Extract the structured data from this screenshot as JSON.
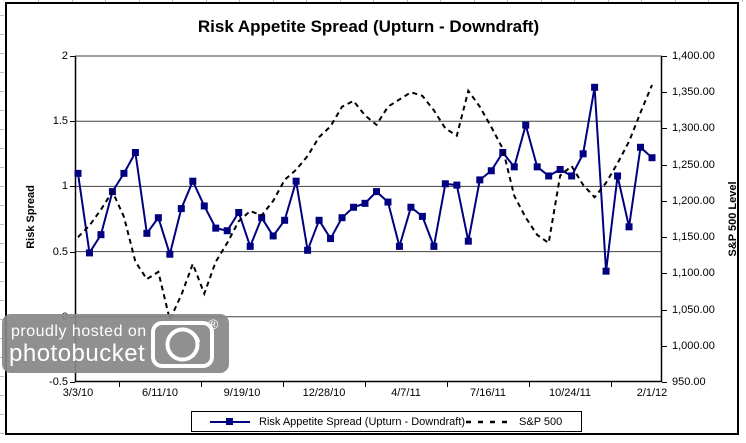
{
  "watermark": {
    "line1": "proudly hosted on",
    "line2": "photobucket",
    "registered": "®"
  },
  "chart_data": {
    "type": "line",
    "title": "Risk Appetite Spread (Upturn - Downdraft)",
    "grid": true,
    "legend_position": "bottom",
    "left_axis": {
      "label": "Risk Spread",
      "min": -0.5,
      "max": 2,
      "ticks": [
        2,
        1.5,
        1,
        0.5,
        0,
        -0.5
      ]
    },
    "right_axis": {
      "label": "S&P 500 Level",
      "min": 950,
      "max": 1400,
      "tick_step": 50,
      "tick_labels": [
        "1,400.00",
        "1,350.00",
        "1,300.00",
        "1,250.00",
        "1,200.00",
        "1,150.00",
        "1,100.00",
        "1,050.00",
        "1,000.00",
        "950.00"
      ]
    },
    "x_axis": {
      "tick_labels": [
        "3/3/10",
        "6/11/10",
        "9/19/10",
        "12/28/10",
        "4/7/11",
        "7/16/11",
        "10/24/11",
        "2/1/12"
      ]
    },
    "series": [
      {
        "name": "Risk Appetite Spread (Upturn - Downdraft)",
        "axis": "left",
        "color": "#000080",
        "line": "solid",
        "marker": "square",
        "values": [
          1.1,
          0.49,
          0.63,
          0.96,
          1.1,
          1.26,
          0.64,
          0.76,
          0.48,
          0.83,
          1.04,
          0.85,
          0.68,
          0.66,
          0.8,
          0.54,
          0.76,
          0.62,
          0.74,
          1.04,
          0.51,
          0.74,
          0.6,
          0.76,
          0.84,
          0.87,
          0.96,
          0.88,
          0.54,
          0.84,
          0.77,
          0.54,
          1.02,
          1.01,
          0.58,
          1.05,
          1.12,
          1.26,
          1.15,
          1.47,
          1.15,
          1.08,
          1.13,
          1.08,
          1.25,
          1.76,
          0.35,
          1.08,
          0.69,
          1.3,
          1.22
        ]
      },
      {
        "name": "S&P 500",
        "axis": "right",
        "color": "#000000",
        "line": "dashed",
        "marker": "none",
        "values": [
          1150,
          1166,
          1188,
          1213,
          1178,
          1116,
          1092,
          1102,
          1036,
          1070,
          1113,
          1072,
          1116,
          1142,
          1172,
          1186,
          1180,
          1200,
          1229,
          1243,
          1262,
          1288,
          1303,
          1330,
          1338,
          1318,
          1305,
          1330,
          1340,
          1350,
          1345,
          1325,
          1300,
          1290,
          1352,
          1330,
          1302,
          1272,
          1207,
          1177,
          1153,
          1142,
          1235,
          1248,
          1222,
          1205,
          1225,
          1252,
          1282,
          1322,
          1360
        ]
      }
    ]
  }
}
